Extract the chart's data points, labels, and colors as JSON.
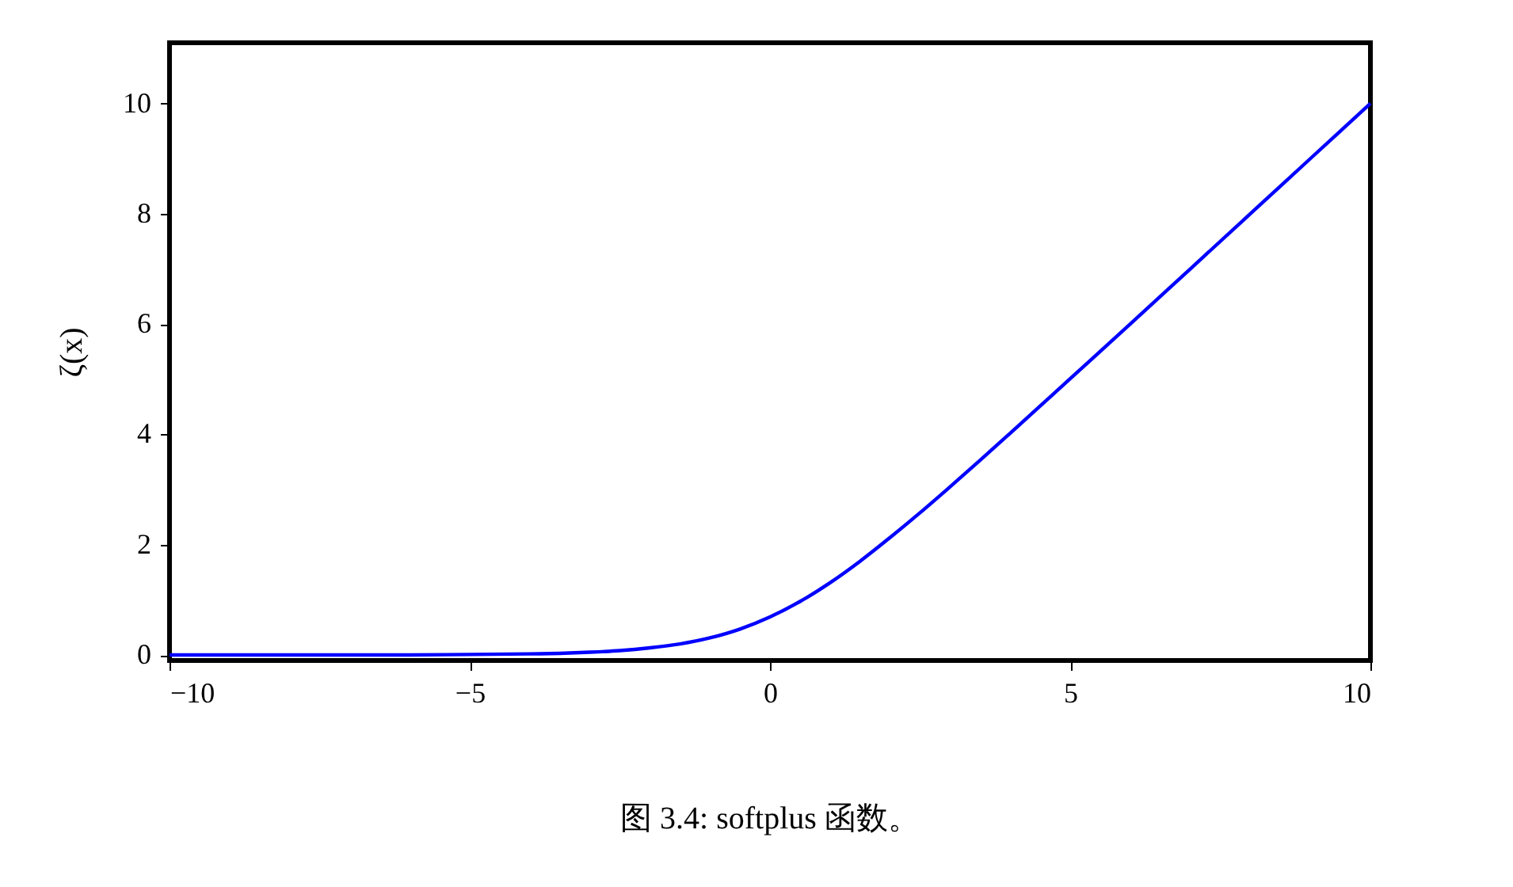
{
  "chart_data": {
    "type": "line",
    "ylabel": "ζ(x)",
    "x": [
      -10,
      -8,
      -6,
      -5,
      -4,
      -3.5,
      -3,
      -2.5,
      -2,
      -1.5,
      -1,
      -0.5,
      0,
      0.5,
      1,
      1.5,
      2,
      2.5,
      3,
      3.5,
      4,
      5,
      6,
      7,
      8,
      9,
      10
    ],
    "series": [
      {
        "color": "#0000ff",
        "values": [
          0.0,
          0.0,
          0.0,
          0.01,
          0.02,
          0.03,
          0.05,
          0.08,
          0.13,
          0.2,
          0.31,
          0.47,
          0.69,
          0.97,
          1.31,
          1.7,
          2.13,
          2.58,
          3.05,
          3.53,
          4.02,
          5.01,
          6.0,
          7.0,
          8.0,
          9.0,
          10.0
        ]
      }
    ],
    "xlim": [
      -10,
      10
    ],
    "xticks": [
      -10,
      -5,
      0,
      5,
      10
    ],
    "ylim": [
      -0.1,
      11.1
    ],
    "yticks": [
      0,
      2,
      4,
      6,
      8,
      10
    ],
    "grid": false,
    "marker": "none",
    "line_style": "solid",
    "annotations": [
      "图 3.4: softplus 函数。"
    ]
  }
}
